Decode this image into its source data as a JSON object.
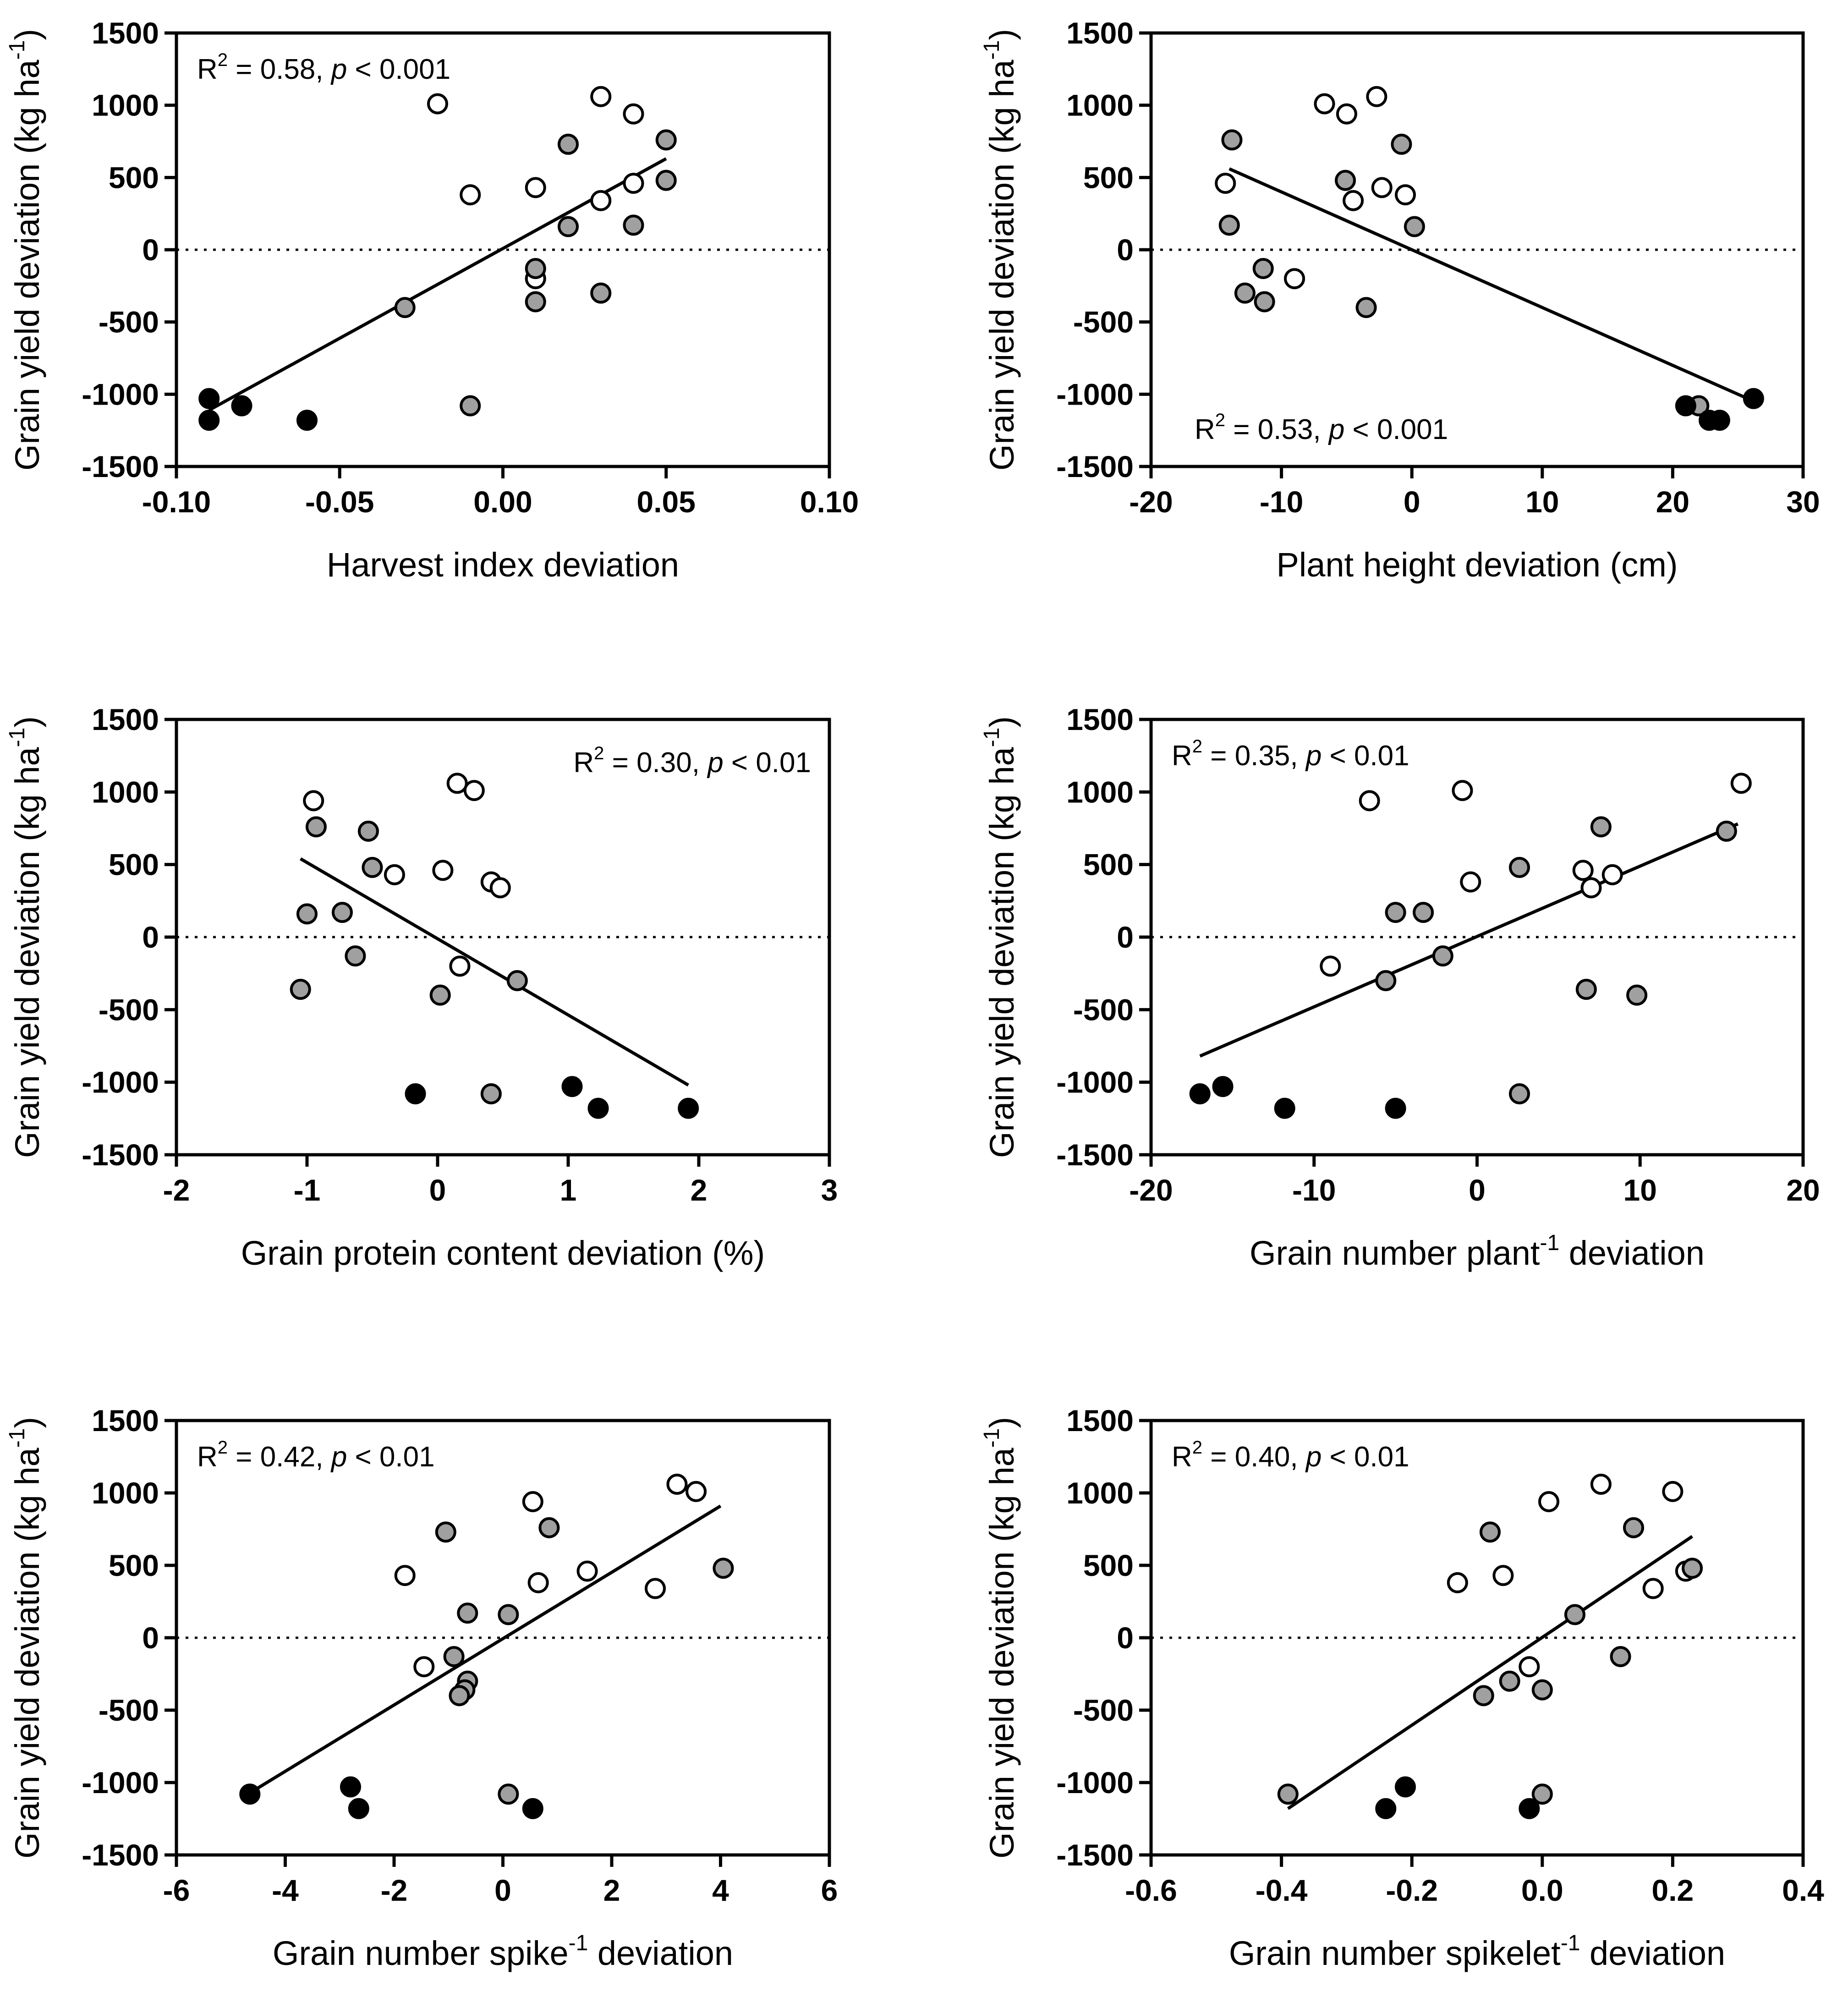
{
  "colors": {
    "open": "#ffffff",
    "grey": "#a0a0a0",
    "black": "#000000",
    "stroke": "#000000"
  },
  "chart_data": [
    {
      "type": "scatter",
      "title": "",
      "xlabel": "Harvest index deviation",
      "ylabel": "Grain yield deviation (kg ha",
      "ylabel_sup": "-1",
      "ylabel_tail": ")",
      "xlim": [
        -0.1,
        0.1
      ],
      "ylim": [
        -1500,
        1500
      ],
      "xticks": [
        "-0.10",
        "-0.05",
        "0.00",
        "0.05",
        "0.10"
      ],
      "xtick_values": [
        -0.1,
        -0.05,
        0,
        0.05,
        0.1
      ],
      "yticks": [
        "-1500",
        "-1000",
        "-500",
        "0",
        "500",
        "1000",
        "1500"
      ],
      "ytick_values": [
        -1500,
        -1000,
        -500,
        0,
        500,
        1000,
        1500
      ],
      "annotation": {
        "r2": "R",
        "sup": "2",
        "value": " = 0.58, ",
        "p": "p",
        "rest": " < 0.001",
        "position": "top-left"
      },
      "regression": {
        "x": [
          -0.09,
          0.05
        ],
        "y": [
          -1110,
          630
        ]
      },
      "series": [
        {
          "name": "open",
          "x": [
            -0.02,
            0.03,
            0.04,
            -0.01,
            0.01,
            0.04,
            0.03,
            0.01
          ],
          "y": [
            1010,
            1060,
            940,
            380,
            430,
            460,
            340,
            -200
          ]
        },
        {
          "name": "grey",
          "x": [
            0.02,
            0.05,
            0.05,
            0.02,
            0.04,
            0.01,
            0.01,
            0.03,
            -0.03,
            -0.01
          ],
          "y": [
            730,
            760,
            480,
            160,
            170,
            -130,
            -360,
            -300,
            -400,
            -1080
          ]
        },
        {
          "name": "black",
          "x": [
            -0.09,
            -0.09,
            -0.08,
            -0.06
          ],
          "y": [
            -1030,
            -1180,
            -1080,
            -1180
          ]
        }
      ]
    },
    {
      "type": "scatter",
      "title": "",
      "xlabel": "Plant height deviation (cm)",
      "ylabel": "Grain yield deviation (kg ha",
      "ylabel_sup": "-1",
      "ylabel_tail": ")",
      "xlim": [
        -20,
        30
      ],
      "ylim": [
        -1500,
        1500
      ],
      "xticks": [
        "-20",
        "-10",
        "0",
        "10",
        "20",
        "30"
      ],
      "xtick_values": [
        -20,
        -10,
        0,
        10,
        20,
        30
      ],
      "yticks": [
        "-1500",
        "-1000",
        "-500",
        "0",
        "500",
        "1000",
        "1500"
      ],
      "ytick_values": [
        -1500,
        -1000,
        -500,
        0,
        500,
        1000,
        1500
      ],
      "annotation": {
        "r2": "R",
        "sup": "2",
        "value": " = 0.53, ",
        "p": "p",
        "rest": " < 0.001",
        "position": "bottom-left"
      },
      "regression": {
        "x": [
          -14,
          26
        ],
        "y": [
          560,
          -1040
        ]
      },
      "series": [
        {
          "name": "open",
          "x": [
            -6.7,
            -5,
            -2.7,
            -14.3,
            -2.3,
            -0.5,
            -4.5,
            -9
          ],
          "y": [
            1010,
            940,
            1060,
            460,
            430,
            380,
            340,
            -200
          ]
        },
        {
          "name": "grey",
          "x": [
            -13.8,
            -0.8,
            -5.1,
            -14,
            0.2,
            -11.4,
            -12.8,
            -11.3,
            -3.5,
            22
          ],
          "y": [
            760,
            730,
            480,
            170,
            160,
            -130,
            -300,
            -360,
            -400,
            -1080
          ]
        },
        {
          "name": "black",
          "x": [
            26.2,
            21,
            22.8,
            23.6
          ],
          "y": [
            -1030,
            -1080,
            -1180,
            -1180
          ]
        }
      ]
    },
    {
      "type": "scatter",
      "title": "",
      "xlabel": "Grain protein content deviation (%)",
      "ylabel": "Grain yield deviation (kg ha",
      "ylabel_sup": "-1",
      "ylabel_tail": ")",
      "xlim": [
        -2,
        3
      ],
      "ylim": [
        -1500,
        1500
      ],
      "xticks": [
        "-2",
        "-1",
        "0",
        "1",
        "2",
        "3"
      ],
      "xtick_values": [
        -2,
        -1,
        0,
        1,
        2,
        3
      ],
      "yticks": [
        "-1500",
        "-1000",
        "-500",
        "0",
        "500",
        "1000",
        "1500"
      ],
      "ytick_values": [
        -1500,
        -1000,
        -500,
        0,
        500,
        1000,
        1500
      ],
      "annotation": {
        "r2": "R",
        "sup": "2",
        "value": " = 0.30, ",
        "p": "p",
        "rest": " < 0.01",
        "position": "top-right"
      },
      "regression": {
        "x": [
          -1.05,
          1.92
        ],
        "y": [
          540,
          -1020
        ]
      },
      "series": [
        {
          "name": "open",
          "x": [
            0.15,
            0.28,
            -0.95,
            -0.33,
            0.04,
            0.41,
            0.48,
            0.17
          ],
          "y": [
            1060,
            1010,
            940,
            430,
            460,
            380,
            340,
            -200
          ]
        },
        {
          "name": "grey",
          "x": [
            -0.93,
            -0.53,
            -0.5,
            -1,
            -0.73,
            -0.63,
            -1.05,
            0.61,
            0.02,
            0.41
          ],
          "y": [
            760,
            730,
            480,
            160,
            170,
            -130,
            -360,
            -300,
            -400,
            -1080
          ]
        },
        {
          "name": "black",
          "x": [
            -0.17,
            1.03,
            1.23,
            1.92
          ],
          "y": [
            -1080,
            -1030,
            -1180,
            -1180
          ]
        }
      ]
    },
    {
      "type": "scatter",
      "title": "",
      "xlabel": "Grain number plant",
      "xlabel_sup": "-1",
      "xlabel_tail": " deviation",
      "ylabel": "Grain yield deviation (kg ha",
      "ylabel_sup": "-1",
      "ylabel_tail": ")",
      "xlim": [
        -20,
        20
      ],
      "ylim": [
        -1500,
        1500
      ],
      "xticks": [
        "-20",
        "-10",
        "0",
        "10",
        "20"
      ],
      "xtick_values": [
        -20,
        -10,
        0,
        10,
        20
      ],
      "yticks": [
        "-1500",
        "-1000",
        "-500",
        "0",
        "500",
        "1000",
        "1500"
      ],
      "ytick_values": [
        -1500,
        -1000,
        -500,
        0,
        500,
        1000,
        1500
      ],
      "annotation": {
        "r2": "R",
        "sup": "2",
        "value": " = 0.35, ",
        "p": "p",
        "rest": " < 0.01",
        "position": "top-left"
      },
      "regression": {
        "x": [
          -17,
          16
        ],
        "y": [
          -820,
          780
        ]
      },
      "series": [
        {
          "name": "open",
          "x": [
            16.2,
            -0.9,
            -6.6,
            -0.4,
            6.5,
            8.3,
            7,
            -9
          ],
          "y": [
            1060,
            1010,
            940,
            380,
            460,
            430,
            340,
            -200
          ]
        },
        {
          "name": "grey",
          "x": [
            7.6,
            15.3,
            2.6,
            -5,
            -3.3,
            -2.1,
            -5.6,
            6.7,
            9.8,
            2.6
          ],
          "y": [
            760,
            730,
            480,
            170,
            170,
            -130,
            -300,
            -360,
            -400,
            -1080
          ]
        },
        {
          "name": "black",
          "x": [
            -17,
            -15.6,
            -11.8,
            -5
          ],
          "y": [
            -1080,
            -1030,
            -1180,
            -1180
          ]
        }
      ]
    },
    {
      "type": "scatter",
      "title": "",
      "xlabel": "Grain number spike",
      "xlabel_sup": "-1",
      "xlabel_tail": " deviation",
      "ylabel": "Grain yield deviation (kg ha",
      "ylabel_sup": "-1",
      "ylabel_tail": ")",
      "xlim": [
        -6,
        6
      ],
      "ylim": [
        -1500,
        1500
      ],
      "xticks": [
        "-6",
        "-4",
        "-2",
        "0",
        "2",
        "4",
        "6"
      ],
      "xtick_values": [
        -6,
        -4,
        -2,
        0,
        2,
        4,
        6
      ],
      "yticks": [
        "-1500",
        "-1000",
        "-500",
        "0",
        "500",
        "1000",
        "1500"
      ],
      "ytick_values": [
        -1500,
        -1000,
        -500,
        0,
        500,
        1000,
        1500
      ],
      "annotation": {
        "r2": "R",
        "sup": "2",
        "value": " = 0.42, ",
        "p": "p",
        "rest": " < 0.01",
        "position": "top-left"
      },
      "regression": {
        "x": [
          -4.6,
          4.0
        ],
        "y": [
          -1060,
          910
        ]
      },
      "series": [
        {
          "name": "open",
          "x": [
            3.2,
            3.55,
            0.55,
            -1.8,
            0.65,
            1.55,
            2.8,
            -1.45
          ],
          "y": [
            1060,
            1010,
            940,
            430,
            380,
            460,
            340,
            -200
          ]
        },
        {
          "name": "grey",
          "x": [
            0.85,
            -1.05,
            4.05,
            -0.65,
            0.1,
            -0.9,
            -0.65,
            -0.7,
            -0.8,
            0.1
          ],
          "y": [
            760,
            730,
            480,
            170,
            160,
            -130,
            -300,
            -360,
            -400,
            -1080
          ]
        },
        {
          "name": "black",
          "x": [
            -4.65,
            -2.8,
            -2.65,
            0.55
          ],
          "y": [
            -1080,
            -1030,
            -1180,
            -1180
          ]
        }
      ]
    },
    {
      "type": "scatter",
      "title": "",
      "xlabel": "Grain number spikelet",
      "xlabel_sup": "-1",
      "xlabel_tail": " deviation",
      "ylabel": "Grain yield deviation (kg ha",
      "ylabel_sup": "-1",
      "ylabel_tail": ")",
      "xlim": [
        -0.6,
        0.4
      ],
      "ylim": [
        -1500,
        1500
      ],
      "xticks": [
        "-0.6",
        "-0.4",
        "-0.2",
        "0.0",
        "0.2",
        "0.4"
      ],
      "xtick_values": [
        -0.6,
        -0.4,
        -0.2,
        0,
        0.2,
        0.4
      ],
      "yticks": [
        "-1500",
        "-1000",
        "-500",
        "0",
        "500",
        "1000",
        "1500"
      ],
      "ytick_values": [
        -1500,
        -1000,
        -500,
        0,
        500,
        1000,
        1500
      ],
      "annotation": {
        "r2": "R",
        "sup": "2",
        "value": " = 0.40, ",
        "p": "p",
        "rest": " < 0.01",
        "position": "top-left"
      },
      "regression": {
        "x": [
          -0.39,
          0.23
        ],
        "y": [
          -1180,
          700
        ]
      },
      "series": [
        {
          "name": "open",
          "x": [
            0.09,
            0.2,
            0.01,
            -0.13,
            -0.06,
            0.22,
            0.17,
            -0.02
          ],
          "y": [
            1060,
            1010,
            940,
            380,
            430,
            460,
            340,
            -200
          ]
        },
        {
          "name": "grey",
          "x": [
            -0.08,
            0.14,
            0.23,
            0.05,
            0.12,
            -0.05,
            0.0,
            -0.09,
            0.0,
            -0.39
          ],
          "y": [
            730,
            760,
            480,
            160,
            -130,
            -300,
            -360,
            -400,
            -1080,
            -1080
          ]
        },
        {
          "name": "black",
          "x": [
            -0.21,
            -0.24,
            -0.02
          ],
          "y": [
            -1030,
            -1180,
            -1180
          ]
        }
      ]
    }
  ]
}
